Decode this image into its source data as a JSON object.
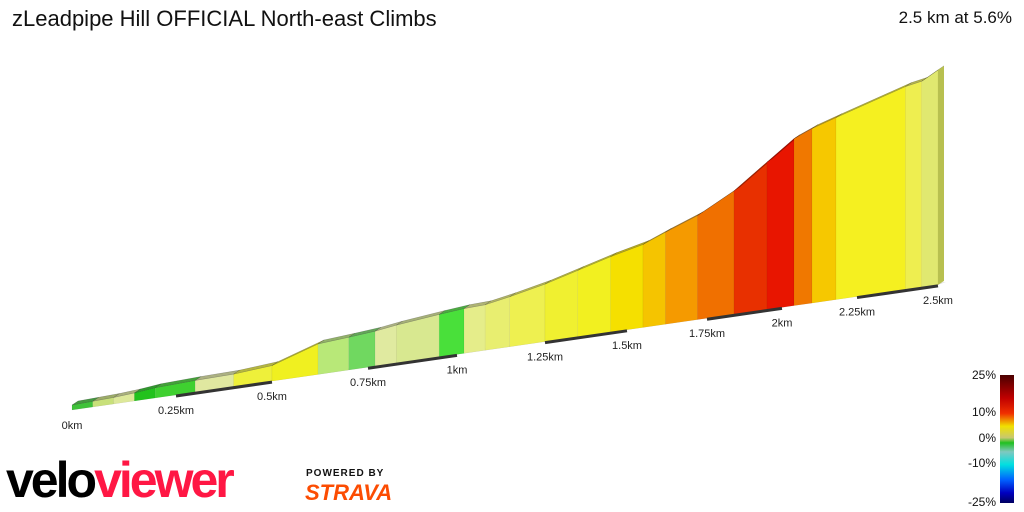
{
  "title": "zLeadpipe Hill OFFICIAL North-east Climbs",
  "summary": "2.5 km at 5.6%",
  "chart_data": {
    "type": "area",
    "title": "zLeadpipe Hill OFFICIAL North-east Climbs",
    "xlabel": "",
    "ylabel": "",
    "x_ticks": [
      "0km",
      "0.25km",
      "0.5km",
      "0.75km",
      "1km",
      "1.25km",
      "1.5km",
      "1.75km",
      "2km",
      "2.25km",
      "2.5km"
    ],
    "x_tick_values": [
      0,
      0.25,
      0.5,
      0.75,
      1,
      1.25,
      1.5,
      1.75,
      2,
      2.25,
      2.5
    ],
    "xlim": [
      0,
      2.5
    ],
    "profile": [
      {
        "km": 0,
        "elev": 0
      },
      {
        "km": 0.05,
        "elev": 0.5,
        "color": "#3fc23a"
      },
      {
        "km": 0.1,
        "elev": 1,
        "color": "#c8e07a"
      },
      {
        "km": 0.15,
        "elev": 2,
        "color": "#dde89a"
      },
      {
        "km": 0.2,
        "elev": 3.5,
        "color": "#22c21d"
      },
      {
        "km": 0.3,
        "elev": 4.5,
        "color": "#3fd030"
      },
      {
        "km": 0.4,
        "elev": 5,
        "color": "#e0e8a0"
      },
      {
        "km": 0.5,
        "elev": 7,
        "color": "#eef03a"
      },
      {
        "km": 0.62,
        "elev": 17,
        "color": "#f0f020"
      },
      {
        "km": 0.7,
        "elev": 18.5,
        "color": "#b8e878"
      },
      {
        "km": 0.77,
        "elev": 20,
        "color": "#70d860"
      },
      {
        "km": 0.83,
        "elev": 22,
        "color": "#e0eaa0"
      },
      {
        "km": 0.95,
        "elev": 25,
        "color": "#d8e890"
      },
      {
        "km": 1.02,
        "elev": 26.5,
        "color": "#49e03a"
      },
      {
        "km": 1.08,
        "elev": 27,
        "color": "#e5ed8a"
      },
      {
        "km": 1.15,
        "elev": 30,
        "color": "#e8ee70"
      },
      {
        "km": 1.25,
        "elev": 35,
        "color": "#eef050"
      },
      {
        "km": 1.35,
        "elev": 41,
        "color": "#f0f030"
      },
      {
        "km": 1.45,
        "elev": 47,
        "color": "#f2f020"
      },
      {
        "km": 1.55,
        "elev": 52,
        "color": "#f5e000"
      },
      {
        "km": 1.62,
        "elev": 58,
        "color": "#f5c400"
      },
      {
        "km": 1.72,
        "elev": 66,
        "color": "#f59a00"
      },
      {
        "km": 1.84,
        "elev": 79,
        "color": "#f07000"
      },
      {
        "km": 1.95,
        "elev": 95,
        "color": "#e83000"
      },
      {
        "km": 2.04,
        "elev": 108,
        "color": "#e81500"
      },
      {
        "km": 2.1,
        "elev": 113,
        "color": "#f07800"
      },
      {
        "km": 2.18,
        "elev": 118,
        "color": "#f6c800"
      },
      {
        "km": 2.4,
        "elev": 132,
        "color": "#f5f020"
      },
      {
        "km": 2.45,
        "elev": 134,
        "color": "#eeee50"
      },
      {
        "km": 2.5,
        "elev": 140,
        "color": "#e0e870"
      }
    ],
    "legend": {
      "labels": [
        "25%",
        "10%",
        "0%",
        "-10%",
        "-25%"
      ],
      "placement": "bottom-right"
    }
  },
  "branding": {
    "logo_a": "velo",
    "logo_b": "viewer",
    "powered_by": "POWERED BY",
    "strava": "STRAVA"
  }
}
